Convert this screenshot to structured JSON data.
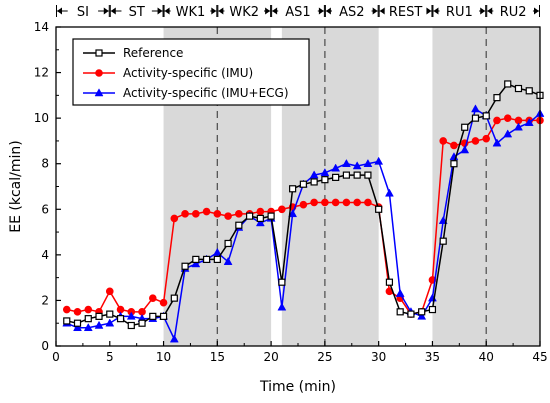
{
  "chart_data": {
    "type": "line",
    "xlabel": "Time (min)",
    "ylabel": "EE (kcal/min)",
    "xlim": [
      0,
      45
    ],
    "ylim": [
      0,
      14
    ],
    "x_ticks": [
      0,
      5,
      10,
      15,
      20,
      25,
      30,
      35,
      40,
      45
    ],
    "y_ticks": [
      0,
      2,
      4,
      6,
      8,
      10,
      12,
      14
    ],
    "phases": [
      {
        "label": "SI",
        "start": 0,
        "end": 5
      },
      {
        "label": "ST",
        "start": 5,
        "end": 10
      },
      {
        "label": "WK1",
        "start": 10,
        "end": 15
      },
      {
        "label": "WK2",
        "start": 15,
        "end": 20
      },
      {
        "label": "AS1",
        "start": 20,
        "end": 25
      },
      {
        "label": "AS2",
        "start": 25,
        "end": 30
      },
      {
        "label": "REST",
        "start": 30,
        "end": 35
      },
      {
        "label": "RU1",
        "start": 35,
        "end": 40
      },
      {
        "label": "RU2",
        "start": 40,
        "end": 45
      }
    ],
    "shaded_regions": [
      [
        10,
        20
      ],
      [
        21,
        30
      ],
      [
        35,
        45
      ]
    ],
    "dashed_lines": [
      15,
      25,
      40
    ],
    "legend_position": "top-left",
    "series": [
      {
        "name": "Reference",
        "color": "#000000",
        "marker": "square-open",
        "x": [
          1,
          2,
          3,
          4,
          5,
          6,
          7,
          8,
          9,
          10,
          11,
          12,
          13,
          14,
          15,
          16,
          17,
          18,
          19,
          20,
          21,
          22,
          23,
          24,
          25,
          26,
          27,
          28,
          29,
          30,
          31,
          32,
          33,
          34,
          35,
          36,
          37,
          38,
          39,
          40,
          41,
          42,
          43,
          44,
          45
        ],
        "y": [
          1.1,
          1.0,
          1.2,
          1.3,
          1.4,
          1.2,
          0.9,
          1.0,
          1.3,
          1.3,
          2.1,
          3.5,
          3.8,
          3.8,
          3.8,
          4.5,
          5.3,
          5.7,
          5.6,
          5.7,
          2.8,
          6.9,
          7.1,
          7.2,
          7.3,
          7.4,
          7.5,
          7.5,
          7.5,
          6.0,
          2.8,
          1.5,
          1.4,
          1.5,
          1.6,
          4.6,
          8.0,
          9.6,
          10.0,
          10.1,
          10.9,
          11.5,
          11.3,
          11.2,
          11.0
        ]
      },
      {
        "name": "Activity-specific (IMU)",
        "color": "#ff0000",
        "marker": "circle",
        "x": [
          1,
          2,
          3,
          4,
          5,
          6,
          7,
          8,
          9,
          10,
          11,
          12,
          13,
          14,
          15,
          16,
          17,
          18,
          19,
          20,
          21,
          22,
          23,
          24,
          25,
          26,
          27,
          28,
          29,
          30,
          31,
          32,
          33,
          34,
          35,
          36,
          37,
          38,
          39,
          40,
          41,
          42,
          43,
          44,
          45
        ],
        "y": [
          1.6,
          1.5,
          1.6,
          1.5,
          2.4,
          1.6,
          1.5,
          1.5,
          2.1,
          1.9,
          5.6,
          5.8,
          5.8,
          5.9,
          5.8,
          5.7,
          5.8,
          5.8,
          5.9,
          5.9,
          6.0,
          6.1,
          6.2,
          6.3,
          6.3,
          6.3,
          6.3,
          6.3,
          6.3,
          6.1,
          2.4,
          2.1,
          1.4,
          1.5,
          2.9,
          9.0,
          8.8,
          8.9,
          9.0,
          9.1,
          9.9,
          10.0,
          9.9,
          9.9,
          9.9
        ]
      },
      {
        "name": "Activity-specific (IMU+ECG)",
        "color": "#0000ff",
        "marker": "triangle",
        "x": [
          1,
          2,
          3,
          4,
          5,
          6,
          7,
          8,
          9,
          10,
          11,
          12,
          13,
          14,
          15,
          16,
          17,
          18,
          19,
          20,
          21,
          22,
          23,
          24,
          25,
          26,
          27,
          28,
          29,
          30,
          31,
          32,
          33,
          34,
          35,
          36,
          37,
          38,
          39,
          40,
          41,
          42,
          43,
          44,
          45
        ],
        "y": [
          1.0,
          0.8,
          0.8,
          0.9,
          1.0,
          1.3,
          1.3,
          1.2,
          1.2,
          1.3,
          0.3,
          3.4,
          3.6,
          3.8,
          4.1,
          3.7,
          5.2,
          5.7,
          5.4,
          5.6,
          1.7,
          5.8,
          7.1,
          7.5,
          7.6,
          7.8,
          8.0,
          7.9,
          8.0,
          8.1,
          6.7,
          2.3,
          1.5,
          1.3,
          2.1,
          5.5,
          8.3,
          8.6,
          10.4,
          10.1,
          8.9,
          9.3,
          9.6,
          9.8,
          10.2
        ]
      }
    ]
  }
}
